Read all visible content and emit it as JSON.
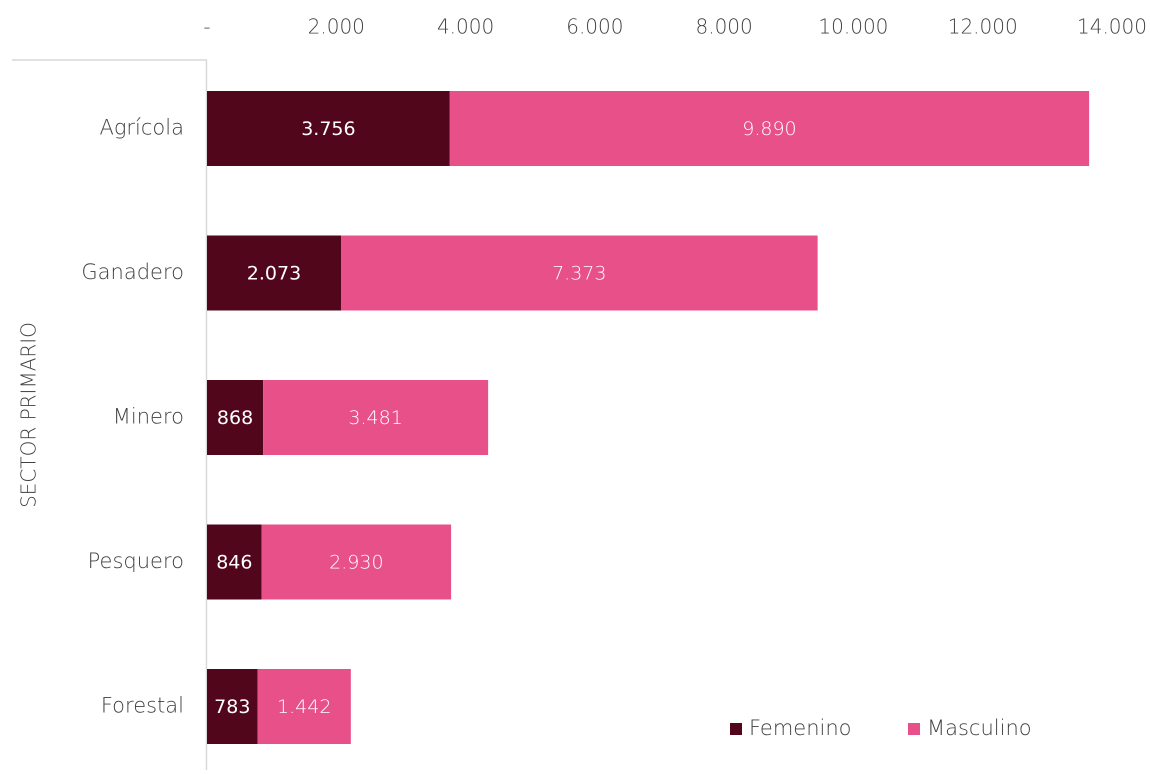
{
  "chart_data": {
    "type": "bar",
    "orientation": "horizontal",
    "stacked": true,
    "group_label": "SECTOR PRIMARIO",
    "categories": [
      "Agrícola",
      "Ganadero",
      "Minero",
      "Pesquero",
      "Forestal"
    ],
    "series": [
      {
        "name": "Femenino",
        "color": "#52061c",
        "label_color": "#ffffff",
        "values": [
          3756,
          2073,
          868,
          846,
          783
        ],
        "labels": [
          "3.756",
          "2.073",
          "868",
          "846",
          "783"
        ]
      },
      {
        "name": "Masculino",
        "color": "#e8508a",
        "label_color": "#ffffff",
        "values": [
          9890,
          7373,
          3481,
          2930,
          1442
        ],
        "labels": [
          "9.890",
          "7.373",
          "3.481",
          "2.930",
          "1.442"
        ]
      }
    ],
    "xlim": [
      0,
      14000
    ],
    "xticks": [
      0,
      2000,
      4000,
      6000,
      8000,
      10000,
      12000,
      14000
    ],
    "xtick_labels": [
      "-",
      "2.000",
      "4.000",
      "6.000",
      "8.000",
      "10.000",
      "12.000",
      "14.000"
    ],
    "x_axis_position": "top",
    "grid": false,
    "legend_position": "bottom-right"
  }
}
